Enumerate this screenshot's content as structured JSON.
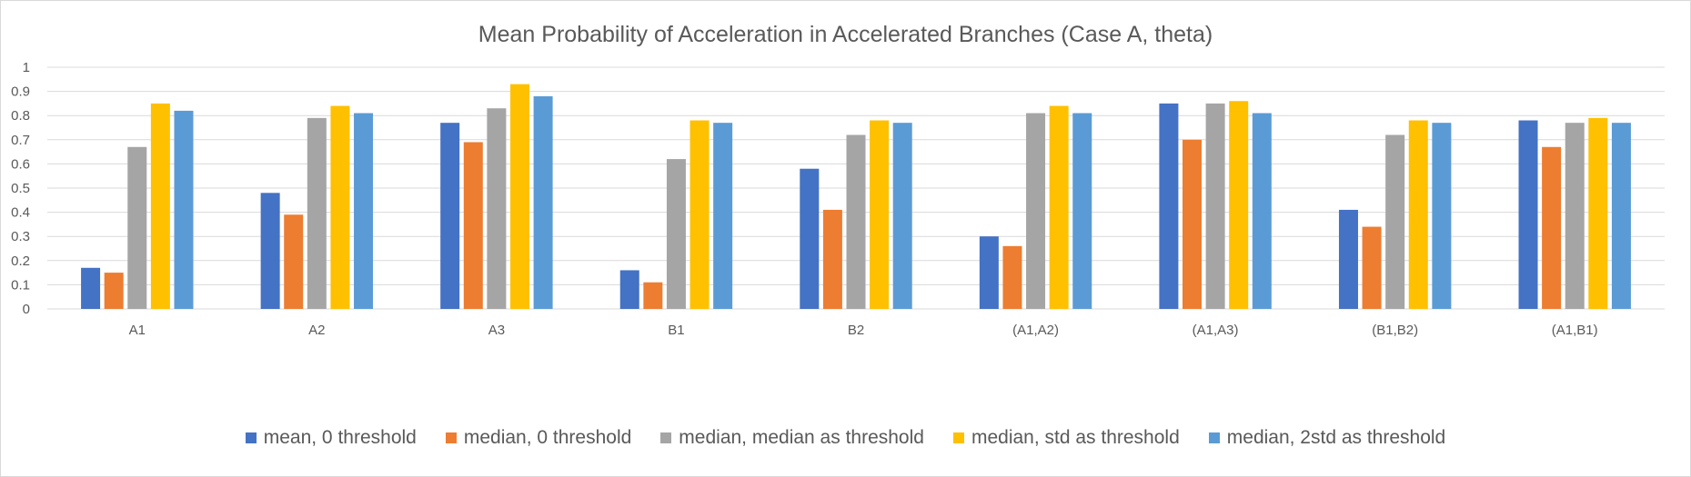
{
  "chart_data": {
    "type": "bar",
    "title": "Mean Probability of Acceleration in Accelerated Branches (Case A, theta)",
    "xlabel": "",
    "ylabel": "",
    "ylim": [
      0,
      1
    ],
    "yticks": [
      "0",
      "0.1",
      "0.2",
      "0.3",
      "0.4",
      "0.5",
      "0.6",
      "0.7",
      "0.8",
      "0.9",
      "1"
    ],
    "grid": true,
    "legend_position": "bottom",
    "categories": [
      "A1",
      "A2",
      "A3",
      "B1",
      "B2",
      "(A1,A2)",
      "(A1,A3)",
      "(B1,B2)",
      "(A1,B1)"
    ],
    "series": [
      {
        "name": "mean, 0 threshold",
        "color": "#4472c4",
        "values": [
          0.17,
          0.48,
          0.77,
          0.16,
          0.58,
          0.3,
          0.85,
          0.41,
          0.78
        ]
      },
      {
        "name": "median, 0 threshold",
        "color": "#ed7d31",
        "values": [
          0.15,
          0.39,
          0.69,
          0.11,
          0.41,
          0.26,
          0.7,
          0.34,
          0.67
        ]
      },
      {
        "name": "median, median as threshold",
        "color": "#a5a5a5",
        "values": [
          0.67,
          0.79,
          0.83,
          0.62,
          0.72,
          0.81,
          0.85,
          0.72,
          0.77
        ]
      },
      {
        "name": "median, std as threshold",
        "color": "#ffc000",
        "values": [
          0.85,
          0.84,
          0.93,
          0.78,
          0.78,
          0.84,
          0.86,
          0.78,
          0.79
        ]
      },
      {
        "name": "median, 2std as threshold",
        "color": "#5b9bd5",
        "values": [
          0.82,
          0.81,
          0.88,
          0.77,
          0.77,
          0.81,
          0.81,
          0.77,
          0.77
        ]
      }
    ]
  }
}
